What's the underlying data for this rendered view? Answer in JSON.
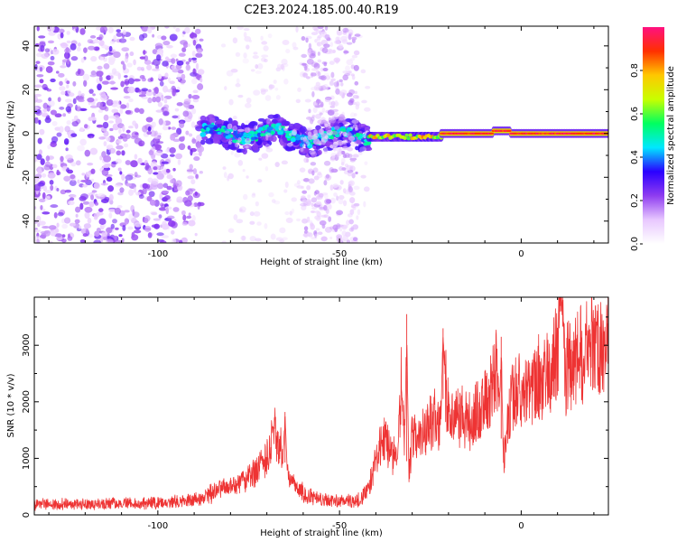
{
  "title": "C2E3.2024.185.00.40.R19",
  "chart_data": [
    {
      "type": "heatmap",
      "xlabel": "Height of straight line (km)",
      "ylabel": "Frequency (Hz)",
      "xlim": [
        -134,
        24
      ],
      "ylim": [
        -50,
        49
      ],
      "x_ticks": [
        -100,
        -50,
        0
      ],
      "y_ticks": [
        -40,
        -20,
        0,
        20,
        40
      ],
      "colorbar": {
        "label": "Normalized spectral amplitude",
        "range": [
          0,
          1
        ],
        "ticks": [
          0.0,
          0.2,
          0.4,
          0.6,
          0.8
        ],
        "colormap": [
          "#ffffff",
          "#e8c8ff",
          "#8f3cf0",
          "#2a00ff",
          "#00e8ff",
          "#00ff60",
          "#c8ff00",
          "#ffc800",
          "#ff3000",
          "#ff1080"
        ]
      },
      "features": [
        {
          "x_range": [
            -134,
            -88
          ],
          "freq_range": [
            -50,
            49
          ],
          "amplitude": "low",
          "pattern": "scattered"
        },
        {
          "x_range": [
            -88,
            -42
          ],
          "freq_center": 0,
          "freq_halfwidth": 3.5,
          "amplitude": [
            0.35,
            0.55
          ],
          "pattern": "wavy band"
        },
        {
          "x_range": [
            -82,
            -42
          ],
          "freq_range": [
            -50,
            49
          ],
          "amplitude": "very low",
          "pattern": "faint scattered"
        },
        {
          "x_range": [
            -60,
            -45
          ],
          "freq_range": [
            -50,
            49
          ],
          "amplitude": "low",
          "pattern": "scattered column"
        },
        {
          "x_range": [
            -42,
            -22
          ],
          "freq_center": -1.5,
          "freq_halfwidth": 2,
          "amplitude": [
            0.55,
            0.85
          ],
          "pattern": "band"
        },
        {
          "x_range": [
            -22,
            24
          ],
          "freq_center": 0,
          "freq_halfwidth": 1.5,
          "amplitude": [
            0.85,
            1.0
          ],
          "pattern": "narrow line"
        }
      ]
    },
    {
      "type": "line",
      "xlabel": "Height of straight line (km)",
      "ylabel": "SNR (10 * v/v)",
      "xlim": [
        -134,
        24
      ],
      "ylim": [
        0,
        3850
      ],
      "x_ticks": [
        -100,
        -50,
        0
      ],
      "y_ticks": [
        0,
        1000,
        2000,
        3000
      ],
      "color": "#ee3333",
      "series": [
        {
          "x": [
            -134,
            -125,
            -115,
            -105,
            -95,
            -88,
            -85,
            -82,
            -78,
            -74,
            -70,
            -68,
            -66,
            -64,
            -62,
            -60,
            -57,
            -54,
            -50,
            -46,
            -44,
            -42,
            -40,
            -38,
            -36,
            -34,
            -33,
            -32,
            -31,
            -30,
            -28,
            -26,
            -24,
            -22,
            -21,
            -20,
            -18,
            -16,
            -14,
            -12,
            -10,
            -8,
            -7,
            -6,
            -5,
            -4,
            -2,
            0,
            2,
            4,
            6,
            8,
            10,
            11,
            12,
            14,
            16,
            18,
            20,
            22,
            24
          ],
          "y": [
            180,
            190,
            190,
            200,
            230,
            270,
            400,
            480,
            550,
            700,
            1000,
            1500,
            1150,
            700,
            480,
            380,
            300,
            260,
            240,
            240,
            280,
            450,
            1000,
            1350,
            1150,
            950,
            2300,
            1200,
            700,
            1400,
            1300,
            1600,
            1700,
            1650,
            2450,
            1800,
            1700,
            1750,
            1650,
            1850,
            2000,
            2150,
            2700,
            1800,
            900,
            1600,
            2200,
            2250,
            2100,
            2400,
            2500,
            2550,
            2900,
            3600,
            2600,
            2700,
            2800,
            2900,
            2950,
            3000,
            3150
          ],
          "spikes": [
            {
              "x": -65,
              "y": 1820
            },
            {
              "x": -31.5,
              "y": 3550
            },
            {
              "x": -21.5,
              "y": 3300
            },
            {
              "x": -5.5,
              "y": 3150
            },
            {
              "x": 11,
              "y": 3850
            }
          ]
        }
      ]
    }
  ]
}
